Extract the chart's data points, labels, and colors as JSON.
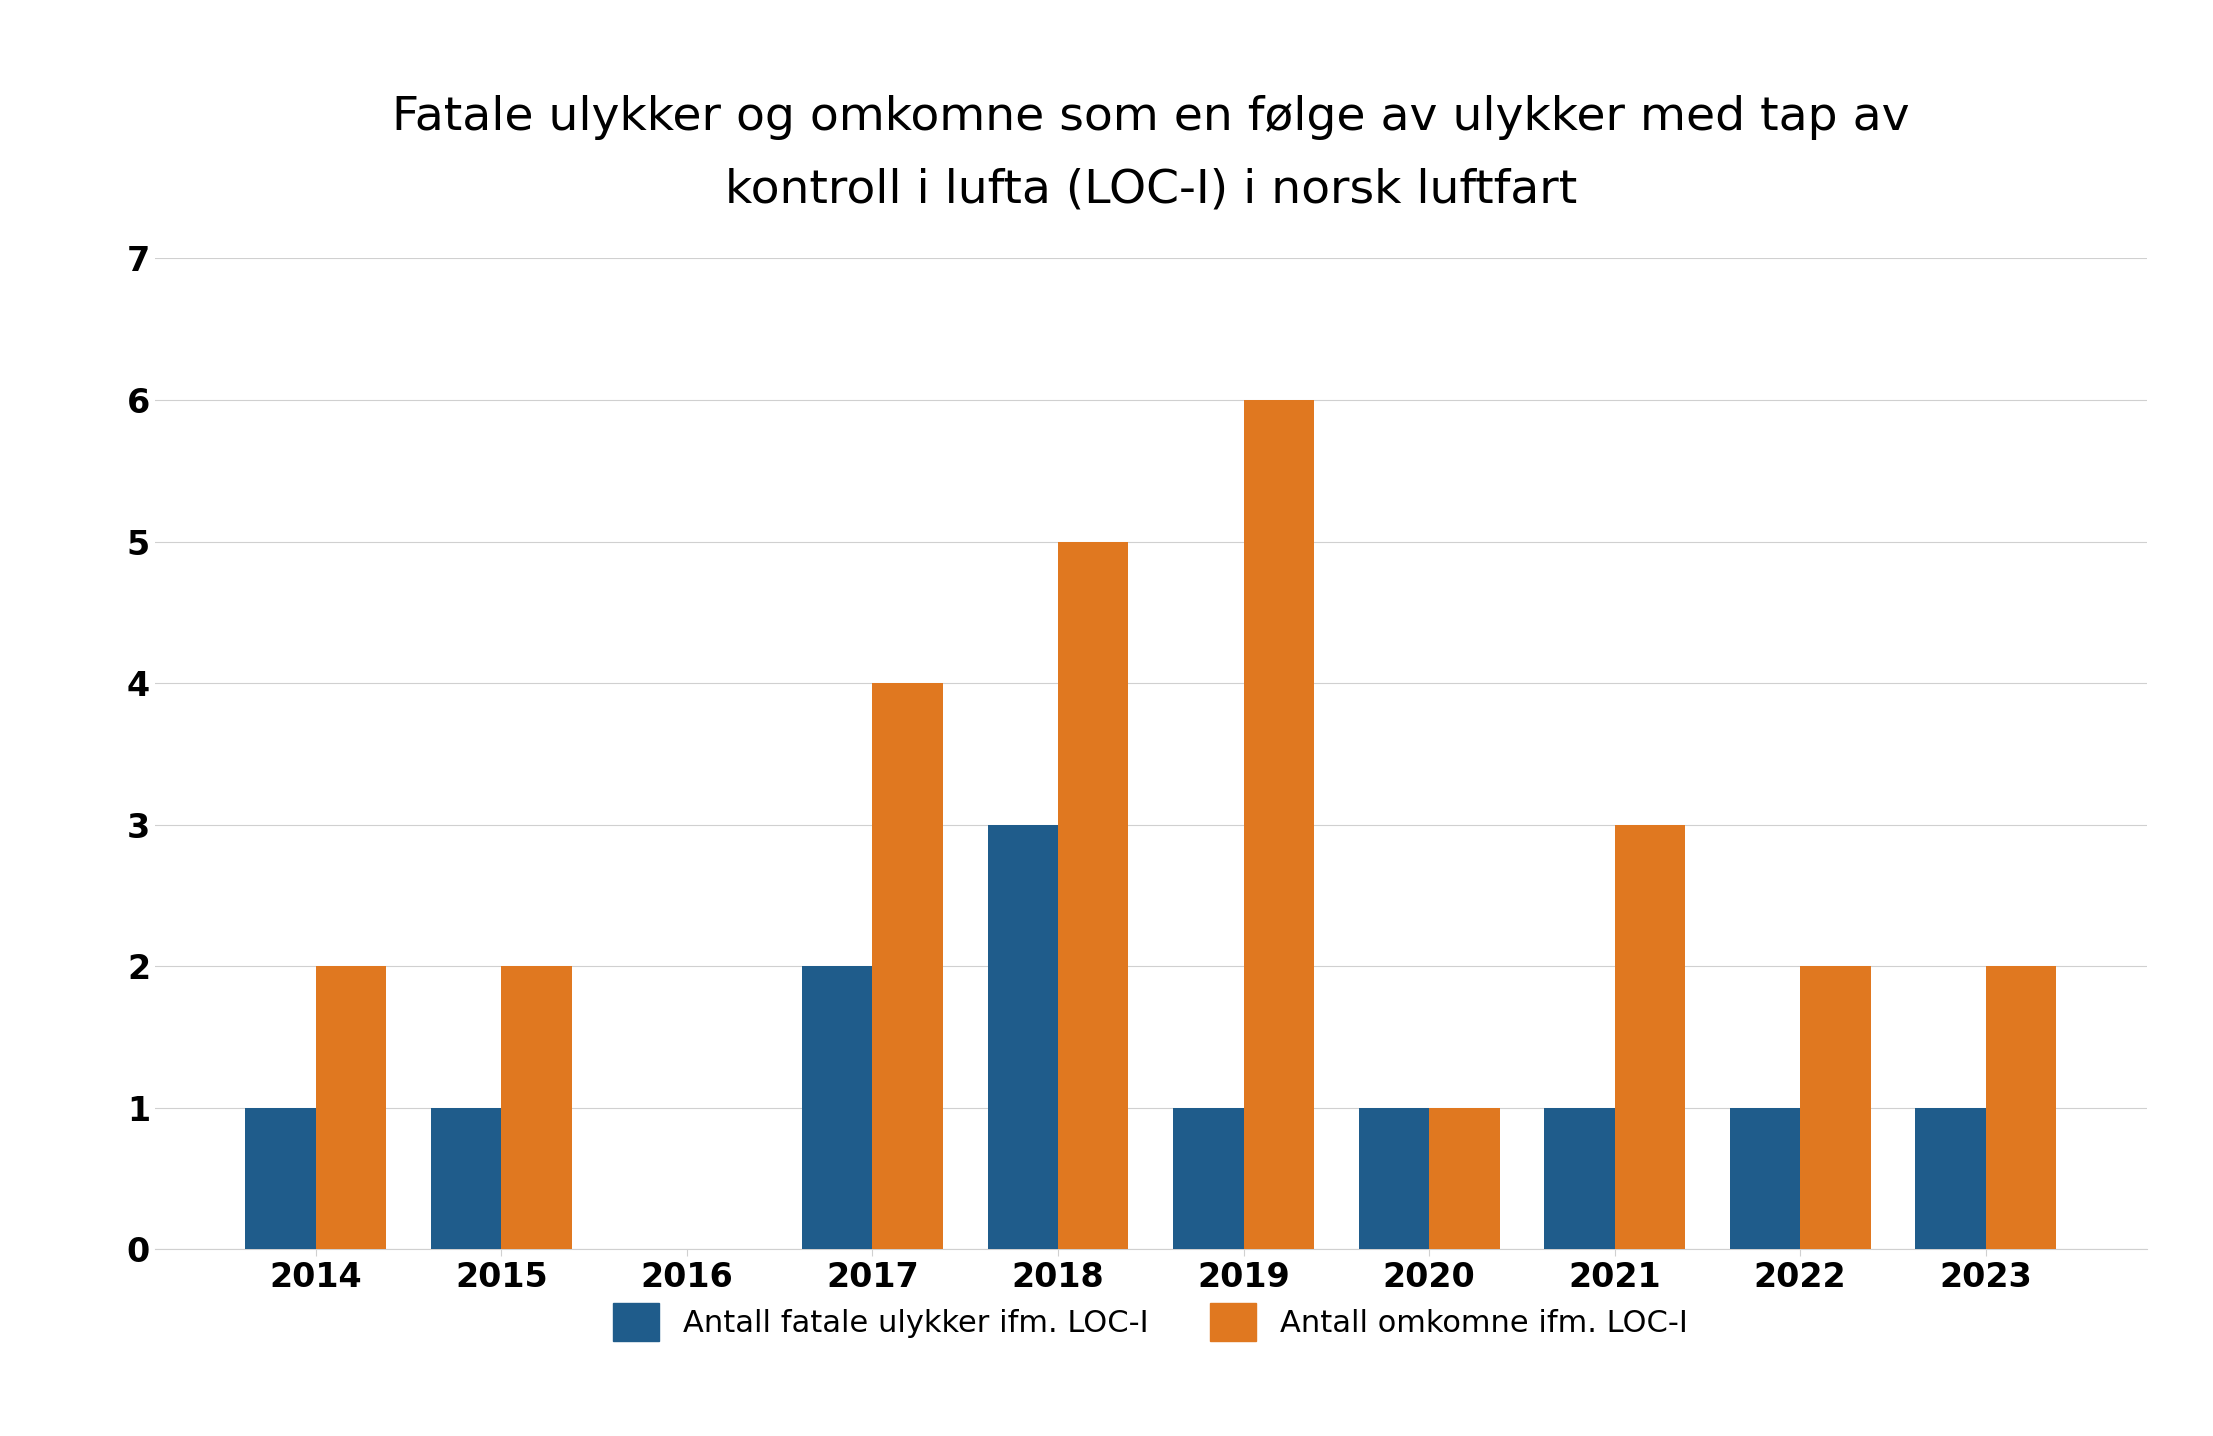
{
  "title": "Fatale ulykker og omkomne som en følge av ulykker med tap av\nkontroll i lufta (LOC-I) i norsk luftfart",
  "years": [
    2014,
    2015,
    2016,
    2017,
    2018,
    2019,
    2020,
    2021,
    2022,
    2023
  ],
  "fatale_ulykker": [
    1,
    1,
    0,
    2,
    3,
    1,
    1,
    1,
    1,
    1
  ],
  "omkomne": [
    2,
    2,
    0,
    4,
    5,
    6,
    1,
    3,
    2,
    2
  ],
  "color_blue": "#1F5C8B",
  "color_orange": "#E07820",
  "legend_blue": "Antall fatale ulykker ifm. LOC-I",
  "legend_orange": "Antall omkomne ifm. LOC-I",
  "ylim": [
    0,
    7
  ],
  "yticks": [
    0,
    1,
    2,
    3,
    4,
    5,
    6,
    7
  ],
  "background_color": "#ffffff",
  "title_fontsize": 34,
  "tick_fontsize": 24,
  "legend_fontsize": 22,
  "bar_width": 0.38
}
